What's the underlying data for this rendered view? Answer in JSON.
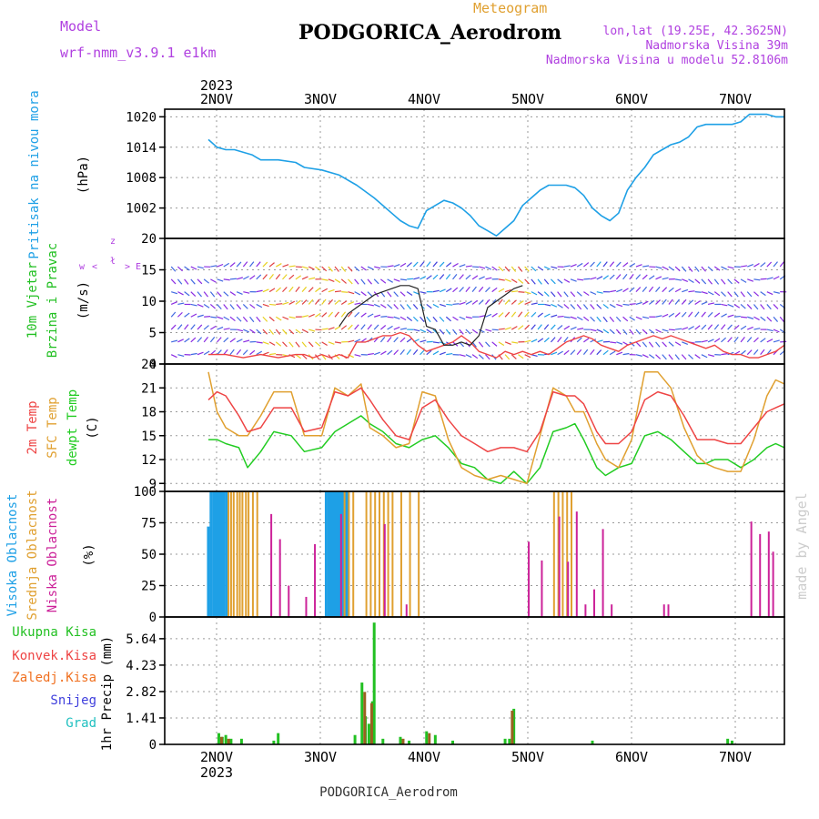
{
  "header": {
    "model_label": "Model",
    "model_name": "wrf-nmm_v3.9.1 e1km",
    "meteogram_label": "Meteogram",
    "station_title": "PODGORICA_Aerodrom",
    "lonlat": "lon,lat (19.25E, 42.3625N)",
    "elevation": "Nadmorska Visina 39m",
    "model_elevation": "Nadmorska Visina u modelu 52.8106m",
    "year_top": "2023",
    "year_bottom": "2023",
    "footer_station": "PODGORICA_Aerodrom",
    "watermark": "made by Angel"
  },
  "colors": {
    "pressure": "#1ea0e6",
    "wind_label": "#22c022",
    "wind_dir": "#b040e0",
    "temp2m": "#ee4444",
    "sfc": "#e0a030",
    "dewpt": "#22cc22",
    "high_cloud": "#1ea0e6",
    "mid_cloud": "#e0a030",
    "low_cloud": "#cc2299",
    "total_precip": "#22c022",
    "conv_precip": "#ee4444",
    "frozen_precip": "#f07020",
    "snow": "#4040dd",
    "graupel": "#20c0c0",
    "gust": "#222222"
  },
  "chart_data": [
    {
      "type": "line",
      "id": "pressure",
      "title_lines": [
        "Pritisak na nivou mora",
        "(hPa)"
      ],
      "x_tick_labels": [
        "2NOV",
        "3NOV",
        "4NOV",
        "5NOV",
        "6NOV",
        "7NOV"
      ],
      "y_ticks": [
        1002,
        1008,
        1014,
        1020
      ],
      "ylim": [
        996,
        1021.5
      ],
      "grid": true,
      "series": [
        {
          "name": "Pritisak na nivou mora",
          "x": [
            0,
            0.1,
            0.2,
            0.3,
            0.5,
            0.55,
            0.6,
            0.8,
            1.0,
            1.1,
            1.3,
            1.5,
            1.7,
            1.9,
            2.1,
            2.2,
            2.3,
            2.4,
            2.5,
            2.6,
            2.7,
            2.8,
            2.9,
            3.0,
            3.1,
            3.2,
            3.3,
            3.4,
            3.5,
            3.6,
            3.7,
            3.8,
            3.9,
            4.0,
            4.1,
            4.2,
            4.3,
            4.4,
            4.5,
            4.6,
            4.7,
            4.8,
            4.9,
            5.0,
            5.1,
            5.2,
            5.3,
            5.4,
            5.5,
            5.6,
            5.7,
            5.8,
            5.9,
            6.0,
            6.1,
            6.2,
            6.3,
            6.35,
            6.4,
            6.5,
            6.6
          ],
          "values": [
            1015.5,
            1014.0,
            1013.5,
            1013.5,
            1012.5,
            1012.0,
            1011.5,
            1011.5,
            1011.0,
            1010.0,
            1009.5,
            1008.5,
            1006.5,
            1004.0,
            1001.0,
            999.5,
            998.5,
            998.0,
            1001.5,
            1002.5,
            1003.5,
            1003.0,
            1002.0,
            1000.5,
            998.5,
            997.5,
            996.5,
            998.0,
            999.5,
            1002.5,
            1004.0,
            1005.5,
            1006.5,
            1006.5,
            1006.5,
            1006.0,
            1004.5,
            1002.0,
            1000.5,
            999.5,
            1001.0,
            1005.5,
            1008.0,
            1010.0,
            1012.5,
            1013.5,
            1014.5,
            1015.0,
            1016.0,
            1018.0,
            1018.5,
            1018.5,
            1018.5,
            1018.5,
            1019.0,
            1020.5,
            1020.5,
            1020.5,
            1020.5,
            1020.0,
            1020.0
          ]
        }
      ]
    },
    {
      "type": "line",
      "id": "wind",
      "title_lines": [
        "10m Vjetar",
        "Brzina i Pravac",
        "(m/s)"
      ],
      "compass_labels": [
        "z",
        "ł",
        "w",
        "E",
        "<",
        ">"
      ],
      "y_ticks": [
        0,
        5,
        10,
        15,
        20
      ],
      "ylim": [
        0,
        20
      ],
      "grid": true,
      "series": [
        {
          "name": "Brzina",
          "x": [
            0,
            0.2,
            0.4,
            0.6,
            0.8,
            1.0,
            1.1,
            1.2,
            1.3,
            1.4,
            1.5,
            1.6,
            1.7,
            1.8,
            1.9,
            2.0,
            2.1,
            2.2,
            2.3,
            2.4,
            2.5,
            2.6,
            2.7,
            2.8,
            2.9,
            3.0,
            3.1,
            3.2,
            3.3,
            3.4,
            3.5,
            3.6,
            3.7,
            3.8,
            3.9,
            4.0,
            4.1,
            4.2,
            4.3,
            4.4,
            4.5,
            4.6,
            4.7,
            4.8,
            4.9,
            5.0,
            5.1,
            5.2,
            5.3,
            5.4,
            5.5,
            5.6,
            5.7,
            5.8,
            5.9,
            6.0,
            6.1,
            6.2,
            6.3,
            6.4,
            6.5,
            6.6
          ],
          "values": [
            1.5,
            1.5,
            1.0,
            1.5,
            1.0,
            1.5,
            1.5,
            1.0,
            1.5,
            1.0,
            1.5,
            1.0,
            3.5,
            3.5,
            4.0,
            4.5,
            4.5,
            5.0,
            4.5,
            3.0,
            2.0,
            2.5,
            3.0,
            3.5,
            4.5,
            3.5,
            2.0,
            1.5,
            1.0,
            2.0,
            1.5,
            2.0,
            1.5,
            2.0,
            1.5,
            2.5,
            3.5,
            4.0,
            4.5,
            4.0,
            3.0,
            2.5,
            2.0,
            3.0,
            3.5,
            4.0,
            4.5,
            4.0,
            4.5,
            4.0,
            3.5,
            3.0,
            2.5,
            3.0,
            2.0,
            1.5,
            1.5,
            1.0,
            1.0,
            1.5,
            2.0,
            3.0
          ]
        },
        {
          "name": "Udar",
          "x": [
            1.5,
            1.6,
            1.7,
            1.8,
            1.9,
            2.0,
            2.1,
            2.2,
            2.3,
            2.4,
            2.5,
            2.6,
            2.7,
            2.8,
            2.9,
            3.0,
            3.1,
            3.2,
            3.3,
            3.4,
            3.5,
            3.6
          ],
          "values": [
            6.0,
            8.0,
            9.0,
            10.0,
            11.0,
            11.5,
            12.0,
            12.5,
            12.5,
            12.0,
            6.0,
            5.5,
            3.0,
            3.0,
            3.5,
            3.0,
            4.5,
            9.0,
            10.0,
            11.0,
            12.0,
            12.5
          ]
        }
      ]
    },
    {
      "type": "line",
      "id": "temperature",
      "title_lines": [
        "2m Temp",
        "SFC Temp",
        "dewpt Temp",
        "(C)"
      ],
      "y_ticks": [
        9,
        12,
        15,
        18,
        21,
        24
      ],
      "ylim": [
        8,
        24
      ],
      "grid": true,
      "series": [
        {
          "name": "2m Temp",
          "x": [
            0,
            0.1,
            0.2,
            0.35,
            0.45,
            0.6,
            0.75,
            0.95,
            1.1,
            1.3,
            1.45,
            1.6,
            1.75,
            1.85,
            2.0,
            2.15,
            2.3,
            2.45,
            2.6,
            2.75,
            2.9,
            3.05,
            3.2,
            3.35,
            3.5,
            3.65,
            3.8,
            3.95,
            4.1,
            4.2,
            4.3,
            4.45,
            4.55,
            4.7,
            4.85,
            5.0,
            5.15,
            5.3,
            5.45,
            5.6,
            5.7,
            5.8,
            5.95,
            6.1,
            6.25,
            6.4,
            6.5,
            6.6
          ],
          "values": [
            19.5,
            20.5,
            20.0,
            17.5,
            15.5,
            16.0,
            18.5,
            18.5,
            15.5,
            16.0,
            20.5,
            20.0,
            21.0,
            19.5,
            17.0,
            15.0,
            14.5,
            18.5,
            19.5,
            17.0,
            15.0,
            14.0,
            13.0,
            13.5,
            13.5,
            13.0,
            15.5,
            20.5,
            20.0,
            20.0,
            19.0,
            15.5,
            14.0,
            14.0,
            15.5,
            19.5,
            20.5,
            20.0,
            17.5,
            14.5,
            14.5,
            14.5,
            14.0,
            14.0,
            16.0,
            18.0,
            18.5,
            19.0
          ]
        },
        {
          "name": "SFC Temp",
          "x": [
            0,
            0.1,
            0.2,
            0.35,
            0.45,
            0.6,
            0.75,
            0.95,
            1.1,
            1.3,
            1.45,
            1.6,
            1.75,
            1.85,
            2.0,
            2.15,
            2.3,
            2.45,
            2.6,
            2.75,
            2.9,
            3.05,
            3.2,
            3.35,
            3.5,
            3.65,
            3.8,
            3.95,
            4.1,
            4.2,
            4.3,
            4.45,
            4.55,
            4.7,
            4.85,
            5.0,
            5.15,
            5.3,
            5.45,
            5.6,
            5.7,
            5.8,
            5.95,
            6.1,
            6.25,
            6.4,
            6.5,
            6.6
          ],
          "values": [
            23.0,
            18.0,
            16.0,
            15.0,
            15.0,
            17.5,
            20.5,
            20.5,
            15.0,
            15.0,
            21.0,
            20.0,
            21.5,
            16.0,
            15.0,
            13.5,
            14.0,
            20.5,
            20.0,
            14.5,
            11.0,
            10.0,
            9.5,
            10.0,
            9.5,
            9.0,
            15.0,
            21.0,
            20.0,
            18.0,
            18.0,
            14.0,
            12.0,
            11.0,
            14.5,
            23.0,
            23.0,
            21.0,
            16.0,
            12.5,
            11.5,
            11.0,
            10.5,
            10.5,
            14.5,
            20.0,
            22.0,
            21.5
          ]
        },
        {
          "name": "dewpt Temp",
          "x": [
            0,
            0.1,
            0.2,
            0.35,
            0.45,
            0.6,
            0.75,
            0.95,
            1.1,
            1.3,
            1.45,
            1.6,
            1.75,
            1.85,
            2.0,
            2.15,
            2.3,
            2.45,
            2.6,
            2.75,
            2.9,
            3.05,
            3.2,
            3.35,
            3.5,
            3.65,
            3.8,
            3.95,
            4.1,
            4.2,
            4.3,
            4.45,
            4.55,
            4.7,
            4.85,
            5.0,
            5.15,
            5.3,
            5.45,
            5.6,
            5.7,
            5.8,
            5.95,
            6.1,
            6.25,
            6.4,
            6.5,
            6.6
          ],
          "values": [
            14.5,
            14.5,
            14.0,
            13.5,
            11.0,
            13.0,
            15.5,
            15.0,
            13.0,
            13.5,
            15.5,
            16.5,
            17.5,
            16.5,
            15.5,
            14.0,
            13.5,
            14.5,
            15.0,
            13.5,
            11.5,
            11.0,
            9.5,
            9.0,
            10.5,
            9.0,
            11.0,
            15.5,
            16.0,
            16.5,
            14.5,
            11.0,
            10.0,
            11.0,
            11.5,
            15.0,
            15.5,
            14.5,
            13.0,
            11.5,
            11.5,
            12.0,
            12.0,
            11.0,
            12.0,
            13.5,
            14.0,
            13.5
          ]
        }
      ]
    },
    {
      "type": "bar",
      "id": "cloud",
      "title_lines": [
        "Visoka Oblacnost",
        "Srednja Oblacnost",
        "Niska Oblacnost",
        "(%)"
      ],
      "y_ticks": [
        0,
        25,
        50,
        75,
        100
      ],
      "ylim": [
        0,
        100
      ],
      "grid": true,
      "series": [
        {
          "name": "Visoka Oblacnost",
          "x": [
            0.0,
            0.03,
            0.06,
            0.08,
            0.1,
            0.12,
            0.14,
            0.16,
            0.18,
            0.21,
            1.35,
            1.38,
            1.4,
            1.42,
            1.44,
            1.46,
            1.48,
            1.5,
            1.52,
            1.54,
            1.56,
            1.58,
            1.6
          ],
          "values": [
            72,
            100,
            100,
            100,
            100,
            100,
            100,
            100,
            100,
            100,
            100,
            100,
            100,
            100,
            100,
            100,
            100,
            100,
            100,
            100,
            100,
            100,
            100
          ]
        },
        {
          "name": "Srednja Oblacnost",
          "x": [
            0.22,
            0.25,
            0.28,
            0.32,
            0.35,
            0.38,
            0.42,
            0.45,
            0.5,
            0.55,
            1.55,
            1.6,
            1.65,
            1.8,
            1.85,
            1.9,
            1.95,
            2.0,
            2.05,
            2.1,
            2.2,
            2.3,
            2.4,
            3.95,
            4.0,
            4.05,
            4.1,
            4.15
          ],
          "values": [
            100,
            100,
            100,
            100,
            100,
            100,
            100,
            100,
            100,
            100,
            100,
            100,
            100,
            100,
            100,
            100,
            100,
            100,
            100,
            100,
            100,
            100,
            100,
            100,
            100,
            100,
            100,
            100
          ]
        },
        {
          "name": "Niska Oblacnost",
          "x": [
            0.7,
            0.8,
            0.9,
            1.1,
            1.2,
            1.5,
            2.0,
            2.25,
            3.65,
            3.8,
            4.0,
            4.1,
            4.2,
            4.3,
            4.4,
            4.5,
            4.6,
            5.2,
            5.25,
            6.2,
            6.3,
            6.4,
            6.45
          ],
          "values": [
            82,
            62,
            25,
            16,
            58,
            82,
            74,
            10,
            60,
            45,
            80,
            44,
            84,
            10,
            22,
            70,
            10,
            10,
            10,
            76,
            66,
            68,
            52
          ]
        }
      ]
    },
    {
      "type": "bar",
      "id": "precip",
      "title_lines": [
        "1hr Precip (mm)"
      ],
      "legend": [
        "Ukupna Kisa",
        "Konvek.Kisa",
        "Zaledj.Kisa",
        "Snijeg",
        "Grad"
      ],
      "y_ticks": [
        0,
        1.41,
        2.82,
        4.23,
        5.64
      ],
      "ylim": [
        0,
        6.8
      ],
      "grid": true,
      "series": [
        {
          "name": "Ukupna Kisa",
          "x": [
            0.12,
            0.16,
            0.2,
            0.26,
            0.38,
            0.75,
            0.8,
            1.68,
            1.76,
            1.8,
            1.84,
            1.88,
            1.9,
            2.0,
            2.2,
            2.3,
            2.5,
            2.6,
            2.8,
            3.4,
            3.45,
            3.5,
            4.4,
            5.95,
            6.0
          ],
          "values": [
            0.6,
            0.4,
            0.5,
            0.3,
            0.3,
            0.2,
            0.6,
            0.5,
            3.3,
            1.5,
            1.1,
            2.3,
            6.5,
            0.3,
            0.4,
            0.2,
            0.7,
            0.5,
            0.2,
            0.3,
            0.3,
            1.9,
            0.2,
            0.3,
            0.2
          ]
        },
        {
          "name": "Konvek.Kisa",
          "x": [
            0.12,
            0.2,
            1.76,
            1.84,
            2.2,
            2.5,
            3.45
          ],
          "values": [
            0.4,
            0.3,
            2.8,
            2.2,
            0.3,
            0.6,
            1.8
          ]
        }
      ]
    }
  ]
}
